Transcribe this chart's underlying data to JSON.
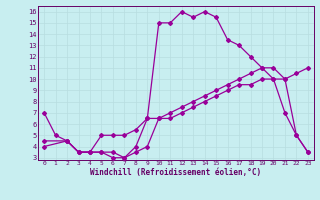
{
  "xlabel": "Windchill (Refroidissement éolien,°C)",
  "bg_color": "#c8eef0",
  "line_color": "#990099",
  "grid_color": "#b8dde0",
  "text_color": "#660066",
  "xlim": [
    -0.5,
    23.5
  ],
  "ylim": [
    2.8,
    16.5
  ],
  "xticks": [
    0,
    1,
    2,
    3,
    4,
    5,
    6,
    7,
    8,
    9,
    10,
    11,
    12,
    13,
    14,
    15,
    16,
    17,
    18,
    19,
    20,
    21,
    22,
    23
  ],
  "yticks": [
    3,
    4,
    5,
    6,
    7,
    8,
    9,
    10,
    11,
    12,
    13,
    14,
    15,
    16
  ],
  "curve1_x": [
    0,
    1,
    2,
    3,
    4,
    5,
    6,
    7,
    8,
    9,
    10,
    11,
    12,
    13,
    14,
    15,
    16,
    17,
    18,
    19,
    20,
    21,
    22,
    23
  ],
  "curve1_y": [
    7.0,
    5.0,
    4.5,
    3.5,
    3.5,
    3.5,
    3.0,
    3.0,
    4.0,
    6.5,
    15.0,
    15.0,
    16.0,
    15.5,
    16.0,
    15.5,
    13.5,
    13.0,
    12.0,
    11.0,
    10.0,
    7.0,
    5.0,
    3.5
  ],
  "curve2_x": [
    0,
    2,
    3,
    4,
    5,
    6,
    7,
    8,
    9,
    10,
    11,
    12,
    13,
    14,
    15,
    16,
    17,
    18,
    19,
    20,
    21,
    22,
    23
  ],
  "curve2_y": [
    4.5,
    4.5,
    3.5,
    3.5,
    3.5,
    3.5,
    3.0,
    3.5,
    4.0,
    6.5,
    6.5,
    7.0,
    7.5,
    8.0,
    8.5,
    9.0,
    9.5,
    9.5,
    10.0,
    10.0,
    10.0,
    5.0,
    3.5
  ],
  "curve3_x": [
    0,
    2,
    3,
    4,
    5,
    6,
    7,
    8,
    9,
    10,
    11,
    12,
    13,
    14,
    15,
    16,
    17,
    18,
    19,
    20,
    21,
    22,
    23
  ],
  "curve3_y": [
    4.0,
    4.5,
    3.5,
    3.5,
    5.0,
    5.0,
    5.0,
    5.5,
    6.5,
    6.5,
    7.0,
    7.5,
    8.0,
    8.5,
    9.0,
    9.5,
    10.0,
    10.5,
    11.0,
    11.0,
    10.0,
    10.5,
    11.0
  ],
  "markersize": 2.0,
  "linewidth": 0.9
}
